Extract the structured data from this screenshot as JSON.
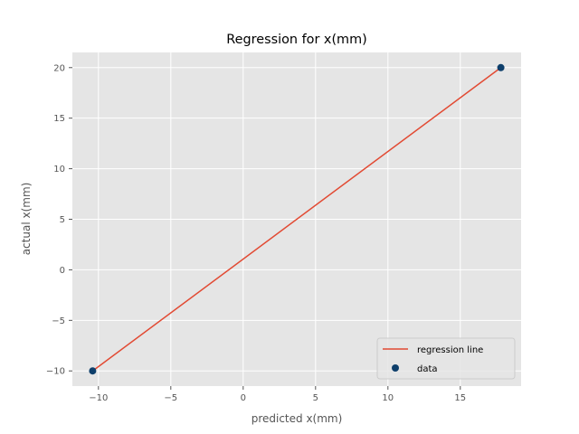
{
  "chart_data": {
    "type": "scatter",
    "title": "Regression for x(mm)",
    "xlabel": "predicted x(mm)",
    "ylabel": "actual x(mm)",
    "xlim": [
      -11.8,
      19.2
    ],
    "ylim": [
      -11.5,
      21.5
    ],
    "xticks": [
      -10,
      -5,
      0,
      5,
      10,
      15
    ],
    "yticks": [
      -10,
      -5,
      0,
      5,
      10,
      15,
      20
    ],
    "xtick_labels": [
      "−10",
      "−5",
      "0",
      "5",
      "10",
      "15"
    ],
    "ytick_labels": [
      "−10",
      "−5",
      "0",
      "5",
      "10",
      "15",
      "20"
    ],
    "grid": true,
    "legend_position": "bottom-right",
    "series": [
      {
        "name": "regression line",
        "kind": "line",
        "color": "#E24A33",
        "x": [
          -10.4,
          17.8
        ],
        "y": [
          -10,
          20
        ]
      },
      {
        "name": "data",
        "kind": "scatter",
        "color": "#0E3F6B",
        "x": [
          -10.4,
          17.8
        ],
        "y": [
          -10,
          20
        ]
      }
    ],
    "colors": {
      "plot_background": "#E5E5E5",
      "grid": "#FFFFFF",
      "axis_text": "#555555"
    }
  }
}
